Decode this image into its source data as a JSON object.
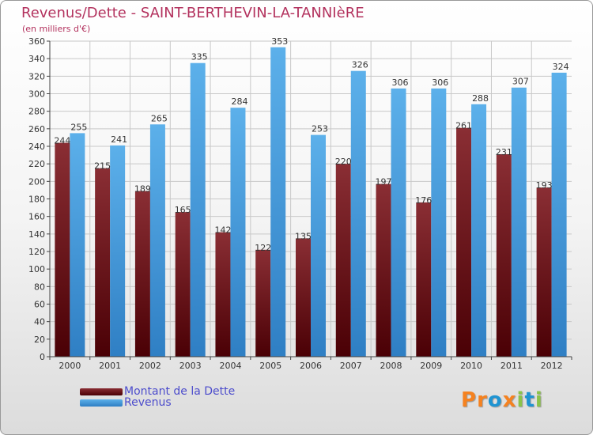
{
  "title": "Revenus/Dette - SAINT-BERTHEVIN-LA-TANNIèRE",
  "subtitle": "(en milliers d'€)",
  "legend": {
    "debt_label": "Montant de la Dette",
    "revenue_label": "Revenus"
  },
  "logo": {
    "letters": [
      "P",
      "r",
      "o",
      "x",
      "i",
      "t",
      "i"
    ]
  },
  "colors": {
    "debt_top": "#8a2e34",
    "debt_bottom": "#4a0005",
    "revenue_top": "#5cb0ea",
    "revenue_bottom": "#2f7fc4",
    "title": "#b3325e",
    "legend_text": "#4d4dcc",
    "logo": [
      "#f58220",
      "#f58220",
      "#1f94d2",
      "#f58220",
      "#8bc34a",
      "#1f94d2",
      "#8bc34a"
    ]
  },
  "chart_data": {
    "type": "bar",
    "categories": [
      "2000",
      "2001",
      "2002",
      "2003",
      "2004",
      "2005",
      "2006",
      "2007",
      "2008",
      "2009",
      "2010",
      "2011",
      "2012"
    ],
    "series": [
      {
        "name": "Montant de la Dette",
        "values": [
          244,
          215,
          189,
          165,
          142,
          122,
          135,
          220,
          197,
          176,
          261,
          231,
          193
        ]
      },
      {
        "name": "Revenus",
        "values": [
          255,
          241,
          265,
          335,
          284,
          353,
          253,
          326,
          306,
          306,
          288,
          307,
          324
        ]
      }
    ],
    "ylim": [
      0,
      360
    ],
    "ytick_step": 20,
    "grid": true,
    "title": "Revenus/Dette - SAINT-BERTHEVIN-LA-TANNIèRE",
    "ylabel": "(en milliers d'€)",
    "legend_position": "bottom-left"
  }
}
